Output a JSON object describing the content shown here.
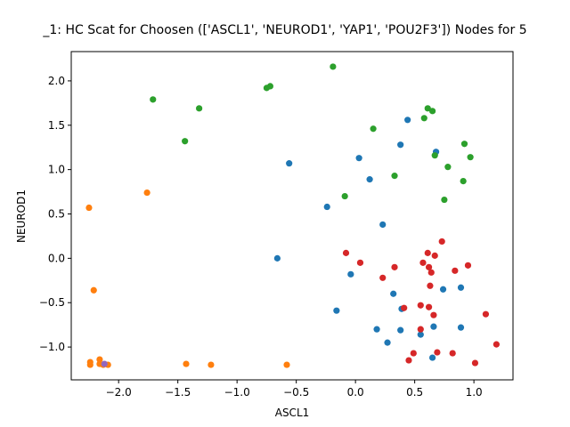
{
  "chart_data": {
    "type": "scatter",
    "title": "_1: HC Scat for Choosen (['ASCL1', 'NEUROD1', 'YAP1', 'POU2F3']) Nodes for 5",
    "xlabel": "ASCL1",
    "ylabel": "NEUROD1",
    "xlim": [
      -2.4,
      1.33
    ],
    "ylim": [
      -1.37,
      2.33
    ],
    "xticks": [
      -2.0,
      -1.5,
      -1.0,
      -0.5,
      0.0,
      0.5,
      1.0
    ],
    "yticks": [
      -1.0,
      -0.5,
      0.0,
      0.5,
      1.0,
      1.5,
      2.0
    ],
    "xtick_labels": [
      "−2.0",
      "−1.5",
      "−1.0",
      "−0.5",
      "0.0",
      "0.5",
      "1.0"
    ],
    "ytick_labels": [
      "−1.0",
      "−0.5",
      "0.0",
      "0.5",
      "1.0",
      "1.5",
      "2.0"
    ],
    "grid": false,
    "series": [
      {
        "color": "#1f77b4",
        "x": [
          0.44,
          0.38,
          0.68,
          0.03,
          0.12,
          -0.56,
          -0.24,
          0.23,
          -0.66,
          -0.04,
          0.32,
          0.39,
          -0.16,
          0.89,
          0.74,
          0.38,
          0.18,
          0.27,
          0.55,
          0.66,
          0.89,
          0.65
        ],
        "y": [
          1.56,
          1.28,
          1.2,
          1.13,
          0.89,
          1.07,
          0.58,
          0.38,
          0.0,
          -0.18,
          -0.4,
          -0.57,
          -0.59,
          -0.33,
          -0.35,
          -0.81,
          -0.8,
          -0.95,
          -0.86,
          -0.77,
          -0.78,
          -1.12
        ]
      },
      {
        "color": "#ff7f0e",
        "x": [
          -1.76,
          -2.25,
          -2.21,
          -2.24,
          -2.24,
          -2.16,
          -2.16,
          -2.13,
          -2.09,
          -1.43,
          -1.22,
          -0.58
        ],
        "y": [
          0.74,
          0.57,
          -0.36,
          -1.17,
          -1.2,
          -1.14,
          -1.19,
          -1.2,
          -1.2,
          -1.19,
          -1.2,
          -1.2
        ]
      },
      {
        "color": "#2ca02c",
        "x": [
          -0.19,
          -0.72,
          -0.75,
          -1.71,
          -1.32,
          -1.44,
          0.15,
          0.61,
          0.65,
          0.58,
          0.92,
          0.67,
          0.97,
          0.33,
          0.78,
          0.91,
          -0.09,
          0.75
        ],
        "y": [
          2.16,
          1.94,
          1.92,
          1.79,
          1.69,
          1.32,
          1.46,
          1.69,
          1.66,
          1.58,
          1.29,
          1.16,
          1.14,
          0.93,
          1.03,
          0.87,
          0.7,
          0.66
        ]
      },
      {
        "color": "#d62728",
        "x": [
          0.73,
          -0.08,
          0.04,
          0.61,
          0.67,
          0.33,
          0.57,
          0.62,
          0.95,
          0.64,
          0.84,
          0.23,
          0.63,
          0.41,
          0.55,
          0.62,
          0.66,
          1.1,
          0.55,
          0.45,
          0.49,
          0.69,
          0.82,
          1.19,
          1.01
        ],
        "y": [
          0.19,
          0.06,
          -0.05,
          0.06,
          0.03,
          -0.1,
          -0.05,
          -0.1,
          -0.08,
          -0.16,
          -0.14,
          -0.22,
          -0.31,
          -0.56,
          -0.53,
          -0.55,
          -0.64,
          -0.63,
          -0.8,
          -1.15,
          -1.07,
          -1.06,
          -1.07,
          -0.97,
          -1.18
        ]
      },
      {
        "color": "#9467bd",
        "x": [
          -2.12
        ],
        "y": [
          -1.19
        ]
      }
    ]
  }
}
